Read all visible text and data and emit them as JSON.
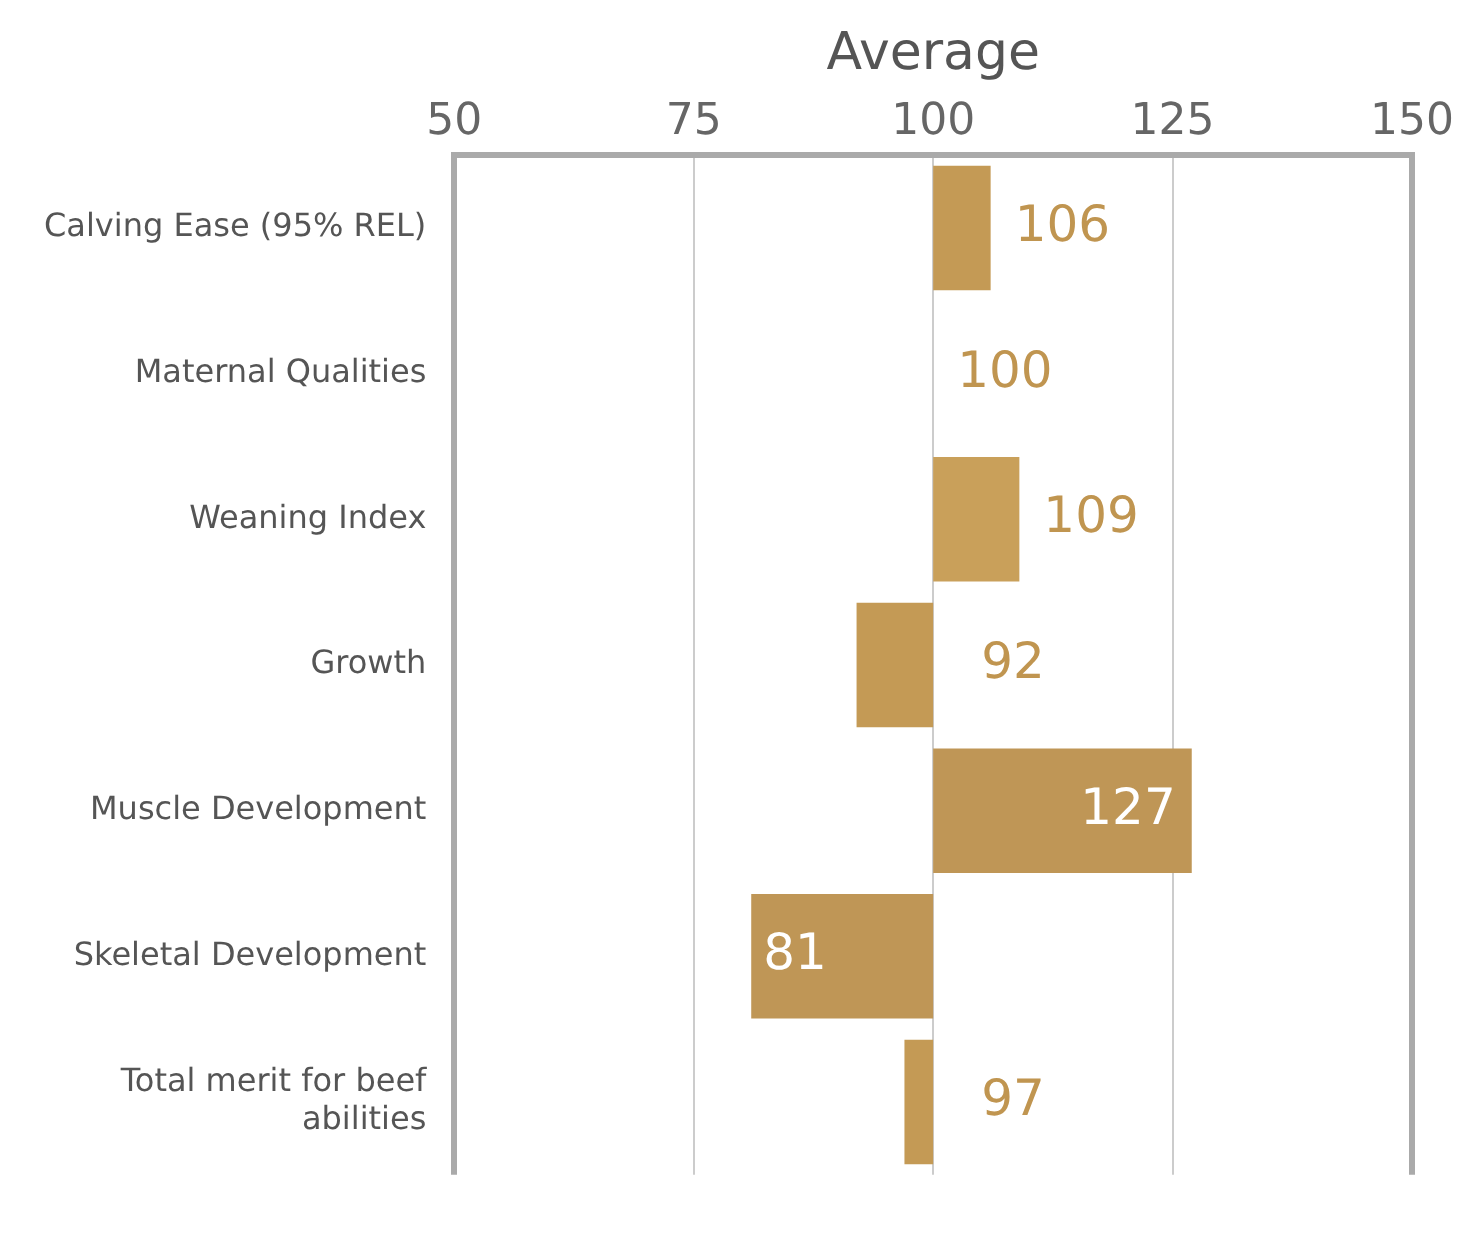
{
  "chart_data": {
    "type": "bar",
    "orientation": "horizontal",
    "xlabel": "Average",
    "categories": [
      "Calving Ease (95% REL)",
      "Maternal Qualities",
      "Weaning Index",
      "Growth",
      "Muscle Development",
      "Skeletal Development",
      "Total merit for beef abilities"
    ],
    "base": [
      100,
      null,
      100,
      100,
      100,
      100,
      100
    ],
    "values": [
      6,
      null,
      9,
      -8,
      27,
      -19,
      -3
    ],
    "value_labels": [
      "106",
      "100",
      "109",
      "92",
      "127",
      "81",
      "97"
    ],
    "colors": [
      "#c49a55",
      "#c49a55",
      "#c9a05a",
      "#c49a55",
      "#bf9656",
      "#bf9656",
      "#c49a55"
    ],
    "xlim": [
      50,
      150
    ],
    "xticks": [
      50,
      75,
      100,
      125,
      150
    ],
    "grid": "x",
    "legend": false
  }
}
